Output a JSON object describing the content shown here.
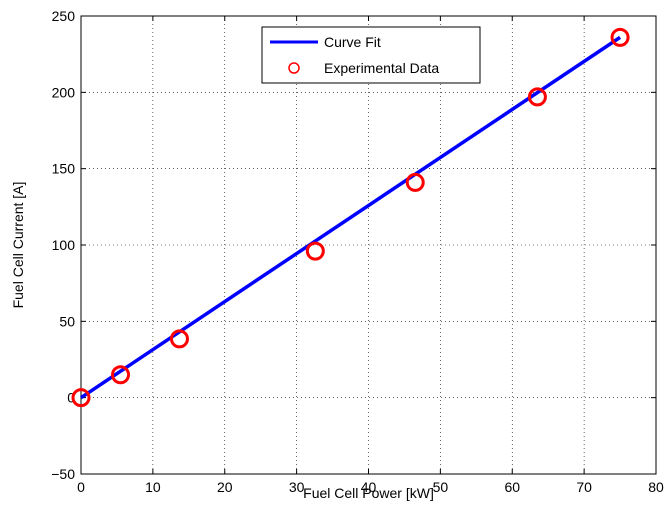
{
  "chart_data": {
    "type": "scatter",
    "title": "",
    "xlabel": "Fuel Cell Power [kW]",
    "ylabel": "Fuel Cell Current [A]",
    "xlim": [
      0,
      80
    ],
    "ylim": [
      -50,
      250
    ],
    "xticks": [
      0,
      10,
      20,
      30,
      40,
      50,
      60,
      70,
      80
    ],
    "yticks": [
      -50,
      0,
      50,
      100,
      150,
      200,
      250
    ],
    "xtick_labels": [
      "0",
      "10",
      "20",
      "30",
      "40",
      "50",
      "60",
      "70",
      "80"
    ],
    "ytick_labels": [
      "−50",
      "0",
      "50",
      "100",
      "150",
      "200",
      "250"
    ],
    "grid": true,
    "legend_position": "top-center",
    "series": [
      {
        "name": "Curve Fit",
        "kind": "line",
        "color": "#0000ff",
        "x": [
          0,
          75
        ],
        "y": [
          0,
          236
        ]
      },
      {
        "name": "Experimental Data",
        "kind": "markers",
        "marker": "circle",
        "color": "#ff0000",
        "x": [
          0,
          5.5,
          13.7,
          32.6,
          46.5,
          63.5,
          75.0
        ],
        "y": [
          0,
          15,
          38.5,
          96,
          141,
          197,
          236
        ]
      }
    ]
  }
}
